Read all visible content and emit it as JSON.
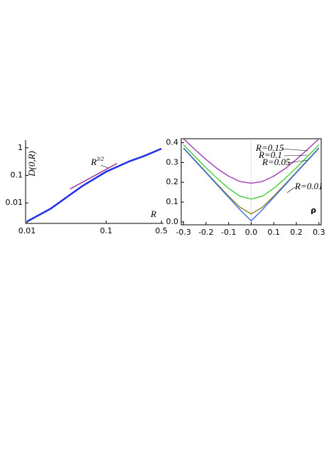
{
  "chart_data": [
    {
      "type": "line",
      "log_x": true,
      "log_y": true,
      "xlabel": "R",
      "ylabel": "D(0,R)",
      "annotation": {
        "base": "R",
        "sup": "3/2"
      },
      "xlim": [
        0.0096,
        0.53
      ],
      "ylim": [
        0.0018,
        1.9
      ],
      "xticks": [
        0.01,
        0.1,
        0.5
      ],
      "yticks": [
        0.01,
        0.1,
        1
      ],
      "series": [
        {
          "color": "#1f2ff0",
          "x": [
            0.01,
            0.02,
            0.05,
            0.1,
            0.2,
            0.3,
            0.5
          ],
          "values": [
            0.0021,
            0.0062,
            0.041,
            0.135,
            0.33,
            0.5,
            0.93
          ]
        },
        {
          "color": "#9b2a8f",
          "x": [
            0.035,
            0.137
          ],
          "values": [
            0.032,
            0.27
          ]
        }
      ]
    },
    {
      "type": "line",
      "xlabel": "ρ",
      "xlim": [
        -0.31,
        0.31
      ],
      "ylim": [
        -0.015,
        0.42
      ],
      "xticks": [
        -0.3,
        -0.2,
        -0.1,
        {
          "value": 0,
          "label": "0.0"
        },
        0.1,
        0.2,
        0.3
      ],
      "yticks": [
        {
          "value": 0,
          "label": "0.0"
        },
        0.1,
        0.2,
        0.3,
        0.4
      ],
      "x": [
        -0.3,
        -0.25,
        -0.2,
        -0.15,
        -0.1,
        -0.05,
        0,
        0.05,
        0.1,
        0.15,
        0.2,
        0.25,
        0.3
      ],
      "series": [
        {
          "name": "R=0.15",
          "color": "#a43cb5",
          "values": [
            0.42,
            0.366,
            0.315,
            0.269,
            0.231,
            0.204,
            0.195,
            0.204,
            0.231,
            0.269,
            0.315,
            0.366,
            0.42
          ]
        },
        {
          "name": "R=0.1",
          "color": "#3fcf3a",
          "values": [
            0.389,
            0.331,
            0.273,
            0.219,
            0.169,
            0.13,
            0.115,
            0.13,
            0.169,
            0.219,
            0.273,
            0.331,
            0.389
          ]
        },
        {
          "name": "R=0.05",
          "color": "#8a7d1c",
          "values": [
            0.374,
            0.313,
            0.251,
            0.19,
            0.13,
            0.074,
            0.04,
            0.074,
            0.13,
            0.19,
            0.251,
            0.313,
            0.374
          ]
        },
        {
          "name": "R=0.01",
          "color": "#3a6ee8",
          "values": [
            0.372,
            0.31,
            0.248,
            0.186,
            0.124,
            0.062,
            0.005,
            0.062,
            0.124,
            0.186,
            0.248,
            0.31,
            0.372
          ]
        }
      ]
    }
  ]
}
